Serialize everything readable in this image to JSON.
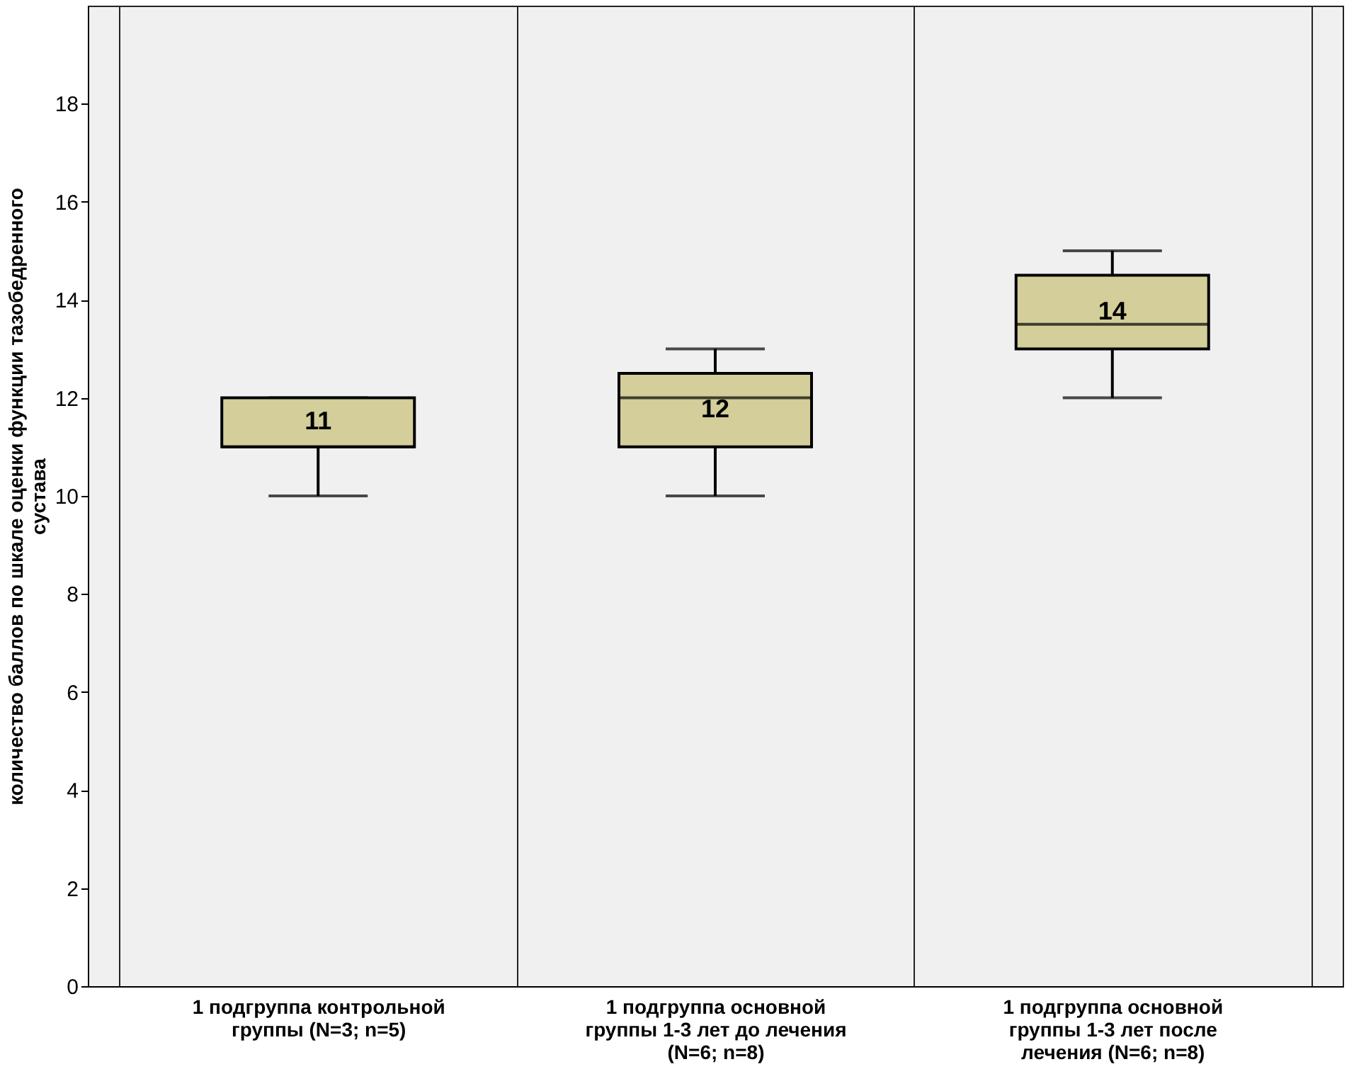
{
  "chart_data": {
    "type": "box",
    "ylabel": "количество баллов по шкале оценки функции тазобедренного сустава",
    "categories": [
      "1 подгруппа контрольной группы (N=3; n=5)",
      "1 подгруппа основной группы 1-3 лет до лечения (N=6; n=8)",
      "1 подгруппа основной группы 1-3 лет после лечения (N=6; n=8)"
    ],
    "boxes": [
      {
        "low": 10,
        "q1": 11,
        "median": 11,
        "q3": 12,
        "high": 12
      },
      {
        "low": 10,
        "q1": 11,
        "median": 12,
        "q3": 12.5,
        "high": 13
      },
      {
        "low": 12,
        "q1": 13,
        "median": 13.5,
        "q3": 14.5,
        "high": 15
      }
    ],
    "color": "#d3ce9a",
    "annotations": [
      "11",
      "12",
      "14"
    ],
    "ylim": [
      0,
      20
    ],
    "yticks": [
      0,
      2,
      4,
      6,
      8,
      10,
      12,
      14,
      16,
      18
    ],
    "grid": true
  }
}
